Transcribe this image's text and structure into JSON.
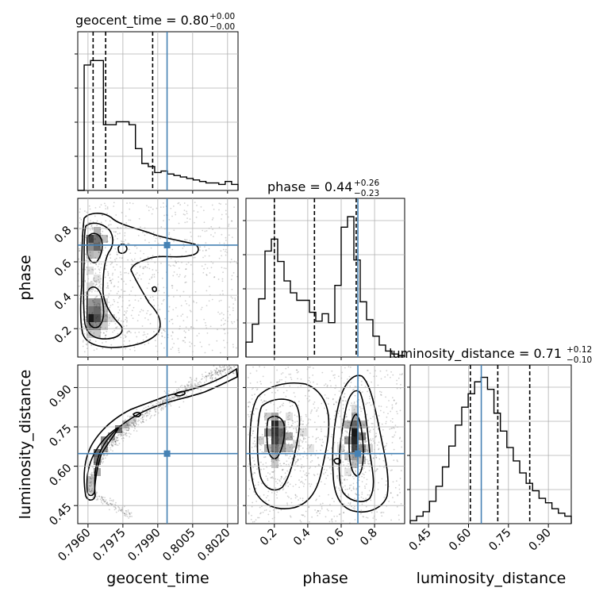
{
  "figure_type": "corner-plot",
  "chart_data": {
    "type": "corner",
    "parameters": [
      "geocent_time",
      "phase",
      "luminosity_distance"
    ],
    "titles": {
      "geocent_time": {
        "label": "geocent_time = 0.80",
        "sup": "+0.00",
        "sub": "−0.00"
      },
      "phase": {
        "label": "phase = 0.44",
        "sup": "+0.26",
        "sub": "−0.23"
      },
      "luminosity_distance": {
        "label": "luminosity_distance = 0.71",
        "sup": "+0.12",
        "sub": "−0.10"
      }
    },
    "ranges": {
      "geocent_time": [
        0.79556,
        0.80245
      ],
      "phase": [
        0.03,
        0.98
      ],
      "luminosity_distance": [
        0.381,
        0.986
      ]
    },
    "ticks": {
      "geocent_time": {
        "values": [
          0.796,
          0.7975,
          0.799,
          0.8005,
          0.802
        ],
        "labels": [
          "0.7960",
          "0.7975",
          "0.7990",
          "0.8005",
          "0.8020"
        ]
      },
      "phase": {
        "values": [
          0.2,
          0.4,
          0.6,
          0.8
        ],
        "labels": [
          "0.2",
          "0.4",
          "0.6",
          "0.8"
        ]
      },
      "luminosity_distance": {
        "values": [
          0.45,
          0.6,
          0.75,
          0.9
        ],
        "labels": [
          "0.45",
          "0.60",
          "0.75",
          "0.90"
        ]
      }
    },
    "truths": {
      "geocent_time": 0.7994,
      "phase": 0.7,
      "luminosity_distance": 0.648
    },
    "quantiles": {
      "geocent_time": [
        0.79622,
        0.79676,
        0.79878
      ],
      "phase": [
        0.2,
        0.44,
        0.69
      ],
      "luminosity_distance": [
        0.607,
        0.71,
        0.83
      ]
    },
    "histograms": {
      "geocent_time": [
        0.0,
        0.84,
        0.87,
        0.87,
        0.44,
        0.44,
        0.46,
        0.46,
        0.44,
        0.28,
        0.18,
        0.16,
        0.12,
        0.13,
        0.11,
        0.1,
        0.09,
        0.08,
        0.07,
        0.06,
        0.05,
        0.05,
        0.04,
        0.06,
        0.04
      ],
      "phase": [
        0.1,
        0.22,
        0.39,
        0.71,
        0.79,
        0.64,
        0.51,
        0.43,
        0.38,
        0.38,
        0.3,
        0.24,
        0.29,
        0.23,
        0.48,
        0.87,
        0.94,
        0.65,
        0.37,
        0.25,
        0.14,
        0.08,
        0.04,
        0.02,
        0.01
      ],
      "luminosity_distance": [
        0.02,
        0.05,
        0.08,
        0.15,
        0.25,
        0.38,
        0.52,
        0.66,
        0.78,
        0.87,
        0.95,
        0.98,
        0.9,
        0.74,
        0.62,
        0.51,
        0.42,
        0.34,
        0.27,
        0.22,
        0.17,
        0.14,
        0.1,
        0.07,
        0.05
      ]
    },
    "grid": true
  }
}
